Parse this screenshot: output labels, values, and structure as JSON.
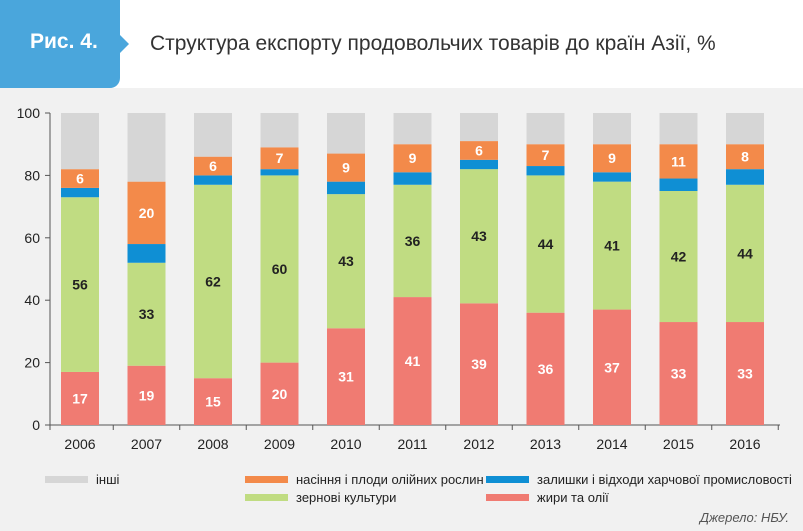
{
  "header": {
    "fig_label": "Рис. 4.",
    "title": "Структура експорту продовольчих товарів до країн Азії, %"
  },
  "source": "Джерело: НБУ.",
  "colors": {
    "fats": "#f07b72",
    "grains": "#c0dc82",
    "residues": "#0f8fd4",
    "seeds": "#f38a4a",
    "other": "#d6d6d6"
  },
  "legend": [
    {
      "key": "other",
      "label": "інші"
    },
    {
      "key": "seeds",
      "label": "насіння і плоди олійних рослин"
    },
    {
      "key": "residues",
      "label": "залишки і відходи харчової промисловості"
    },
    {
      "key": "grains",
      "label": "зернові культури"
    },
    {
      "key": "fats",
      "label": "жири та олії"
    }
  ],
  "chart_data": {
    "type": "bar",
    "stacked": true,
    "categories": [
      "2006",
      "2007",
      "2008",
      "2009",
      "2010",
      "2011",
      "2012",
      "2013",
      "2014",
      "2015",
      "2016"
    ],
    "ylim": [
      0,
      100
    ],
    "yticks": [
      0,
      20,
      40,
      60,
      80,
      100
    ],
    "grid": false,
    "legend_position": "bottom",
    "series": [
      {
        "key": "fats",
        "name": "жири та олії",
        "values": [
          17,
          19,
          15,
          20,
          31,
          41,
          39,
          36,
          37,
          33,
          33
        ],
        "labeled": true
      },
      {
        "key": "grains",
        "name": "зернові культури",
        "values": [
          56,
          33,
          62,
          60,
          43,
          36,
          43,
          44,
          41,
          42,
          44
        ],
        "labeled": true
      },
      {
        "key": "residues",
        "name": "залишки і відходи харчової промисловості",
        "values": [
          3,
          6,
          3,
          2,
          4,
          4,
          3,
          3,
          3,
          4,
          5
        ],
        "labeled": false
      },
      {
        "key": "seeds",
        "name": "насіння і плоди олійних рослин",
        "values": [
          6,
          20,
          6,
          7,
          9,
          9,
          6,
          7,
          9,
          11,
          8
        ],
        "labeled": true
      },
      {
        "key": "other",
        "name": "інші",
        "values": [
          18,
          22,
          14,
          11,
          13,
          10,
          9,
          10,
          10,
          10,
          10
        ],
        "labeled": false
      }
    ]
  }
}
